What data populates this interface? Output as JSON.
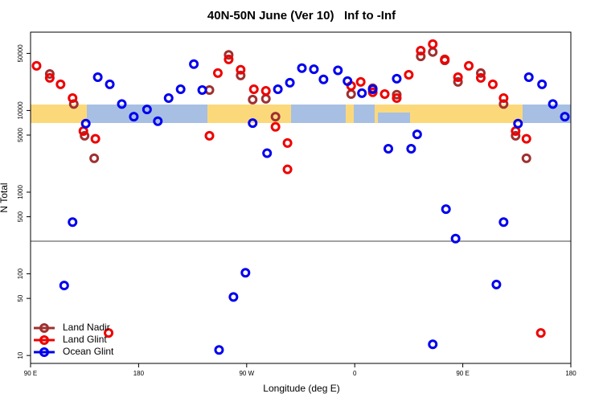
{
  "chart_data": {
    "type": "scatter",
    "title": "40N-50N June (Ver 10)   Inf to -Inf",
    "x_label": "Longitude (deg E)",
    "y_label": "N Total",
    "xlim": [
      90,
      540
    ],
    "ylim": [
      8,
      91000
    ],
    "y_scale": "log",
    "legend_position": "bottom-left",
    "xticks": [
      {
        "value": 90,
        "label": "90 E"
      },
      180,
      {
        "value": 270,
        "label": "90 W"
      },
      {
        "value": 360,
        "label": "0"
      },
      {
        "value": 450,
        "label": "90 E"
      },
      180
    ],
    "yticks": [
      10,
      50,
      100,
      500,
      1000,
      5000,
      10000,
      50000
    ],
    "series": [
      {
        "name": "Land Nadir",
        "color": "#a03030",
        "x": [
          106,
          126,
          135,
          143,
          239,
          255,
          265,
          275,
          286,
          294,
          357,
          375,
          395,
          415,
          425,
          435,
          446,
          465,
          484,
          494,
          503
        ],
        "values": [
          28000,
          12000,
          4900,
          2600,
          17800,
          48000,
          26800,
          13600,
          13900,
          8400,
          15900,
          18700,
          15600,
          46000,
          52000,
          41000,
          22400,
          28700,
          12000,
          4900,
          2600
        ]
      },
      {
        "name": "Land Glint",
        "color": "#ee0000",
        "x": [
          95,
          106,
          115,
          125,
          134,
          144,
          155,
          239,
          246,
          255,
          265,
          276,
          286,
          294,
          304,
          304,
          357,
          365,
          375,
          385,
          395,
          405,
          415,
          425,
          435,
          446,
          455,
          465,
          475,
          484,
          494,
          503,
          515
        ],
        "values": [
          35200,
          25100,
          20900,
          14200,
          5600,
          4500,
          18.9,
          4900,
          28700,
          42200,
          31500,
          18200,
          17400,
          6300,
          4000,
          1900,
          20000,
          22400,
          16700,
          15900,
          14200,
          27400,
          54000,
          65000,
          42200,
          25600,
          35200,
          25100,
          20900,
          14200,
          5600,
          4500,
          18.9
        ]
      },
      {
        "name": "Ocean Glint",
        "color": "#0000ee",
        "x": [
          125,
          118,
          136,
          146,
          156,
          166,
          176,
          187,
          196,
          205,
          215,
          226,
          233,
          247,
          259,
          269,
          275,
          287,
          296,
          306,
          316,
          326,
          334,
          346,
          354,
          366,
          375,
          388,
          395,
          407,
          412,
          425,
          436,
          444,
          478,
          484,
          496,
          505,
          516,
          525,
          535
        ],
        "values": [
          430,
          72,
          6900,
          25600,
          20900,
          12000,
          8400,
          10300,
          7400,
          14200,
          18200,
          37000,
          17800,
          11.7,
          52,
          103,
          7000,
          3000,
          18200,
          21900,
          33000,
          32000,
          24000,
          31000,
          22900,
          16300,
          18200,
          3400,
          24500,
          3400,
          5100,
          13.7,
          620,
          270,
          74,
          430,
          6900,
          25600,
          20900,
          12000,
          8400
        ]
      }
    ]
  }
}
